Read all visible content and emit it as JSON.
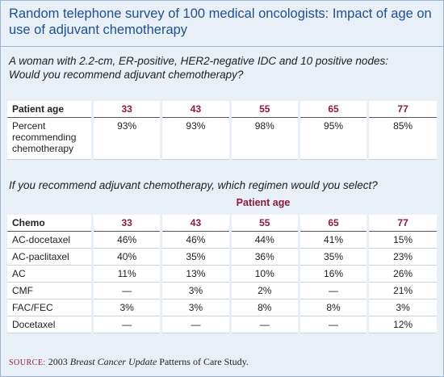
{
  "title": "Random telephone survey of 100 medical oncologists: Impact of age on use of adjuvant chemotherapy",
  "survey1": {
    "question": [
      "A woman with 2.2-cm, ER-positive, HER2-negative IDC and 10 positive nodes:",
      "Would you recommend adjuvant chemotherapy?"
    ],
    "header": [
      "Patient age",
      "33",
      "43",
      "55",
      "65",
      "77"
    ],
    "rows": [
      [
        "Percent recommending chemotherapy",
        "93%",
        "93%",
        "98%",
        "95%",
        "85%"
      ]
    ]
  },
  "survey2": {
    "question": "If you recommend adjuvant chemotherapy, which regimen would you select?",
    "group_header": "Patient age",
    "header": [
      "Chemo",
      "33",
      "43",
      "55",
      "65",
      "77"
    ],
    "rows": [
      [
        "AC-docetaxel",
        "46%",
        "46%",
        "44%",
        "41%",
        "15%"
      ],
      [
        "AC-paclitaxel",
        "40%",
        "35%",
        "36%",
        "35%",
        "23%"
      ],
      [
        "AC",
        "11%",
        "13%",
        "10%",
        "16%",
        "26%"
      ],
      [
        "CMF",
        "—",
        "3%",
        "2%",
        "—",
        "21%"
      ],
      [
        "FAC/FEC",
        "3%",
        "3%",
        "8%",
        "8%",
        "3%"
      ],
      [
        "Docetaxel",
        "—",
        "—",
        "—",
        "—",
        "12%"
      ]
    ]
  },
  "source": {
    "label": "SOURCE:",
    "year": "2003",
    "publication": "Breast Cancer Update",
    "rest": "Patterns of Care Study."
  }
}
